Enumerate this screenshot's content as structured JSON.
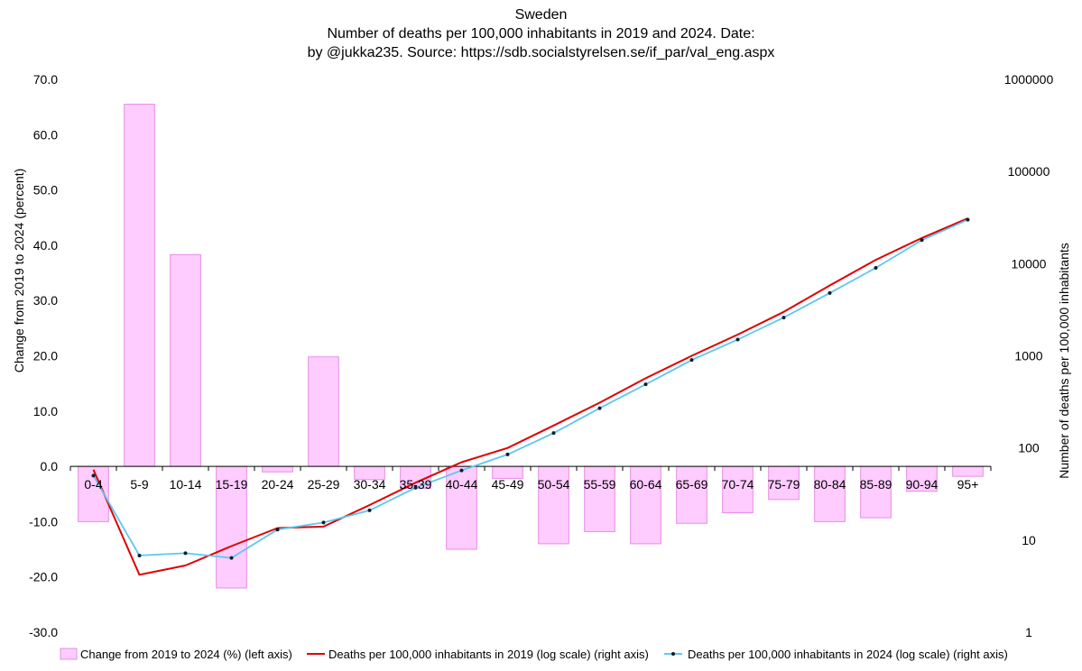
{
  "chart_data": {
    "type": "bar",
    "title": "Sweden",
    "subtitle_lines": [
      "Number of deaths per 100,000 inhabitants in 2019 and 2024. Date:",
      "by @jukka235. Source: https://sdb.socialstyrelsen.se/if_par/val_eng.aspx"
    ],
    "categories": [
      "0-4",
      "5-9",
      "10-14",
      "15-19",
      "20-24",
      "25-29",
      "30-34",
      "35-39",
      "40-44",
      "45-49",
      "50-54",
      "55-59",
      "60-64",
      "65-69",
      "70-74",
      "75-79",
      "80-84",
      "85-89",
      "90-94",
      "95+"
    ],
    "ylabel": "Change from 2019 to 2024 (percent)",
    "y2label": "Number of deaths per 100,000 inhabitants",
    "ylim": [
      -30,
      70
    ],
    "yticks": [
      "-30.0",
      "-20.0",
      "-10.0",
      "0.0",
      "10.0",
      "20.0",
      "30.0",
      "40.0",
      "50.0",
      "60.0",
      "70.0"
    ],
    "y2scale": "log",
    "y2lim": [
      1,
      1000000
    ],
    "y2ticks": [
      "1",
      "10",
      "100",
      "1000",
      "10000",
      "100000",
      "1000000"
    ],
    "grid": false,
    "legend_position": "bottom",
    "series": [
      {
        "name": "Change from 2019 to 2024 (%) (left axis)",
        "type": "bar",
        "axis": "left",
        "color": "#ffccff",
        "edge": "#e58de5",
        "values": [
          -10.0,
          65.5,
          38.3,
          -22.0,
          -1.0,
          19.8,
          -2.4,
          -4.0,
          -15.0,
          -2.2,
          -14.0,
          -11.8,
          -14.0,
          -10.3,
          -8.4,
          -6.0,
          -10.0,
          -9.3,
          -4.5,
          -1.8
        ]
      },
      {
        "name": "Deaths per 100,000 inhabitants in 2019 (log scale) (right axis)",
        "type": "line",
        "axis": "right",
        "color": "#e00000",
        "values": [
          58,
          4.2,
          5.3,
          8.6,
          13.5,
          14.0,
          24,
          42,
          70,
          100,
          175,
          310,
          570,
          1000,
          1700,
          3000,
          5800,
          11000,
          19000,
          31000
        ]
      },
      {
        "name": "Deaths per 100,000 inhabitants in 2024 (log scale) (right axis)",
        "type": "line",
        "axis": "right",
        "color": "#5bc8f0",
        "marker_color": "#0b1f2e",
        "values": [
          50,
          6.8,
          7.2,
          6.4,
          13.0,
          15.5,
          21,
          37,
          57,
          85,
          145,
          270,
          490,
          900,
          1500,
          2600,
          4800,
          9000,
          18000,
          30000
        ]
      }
    ]
  }
}
